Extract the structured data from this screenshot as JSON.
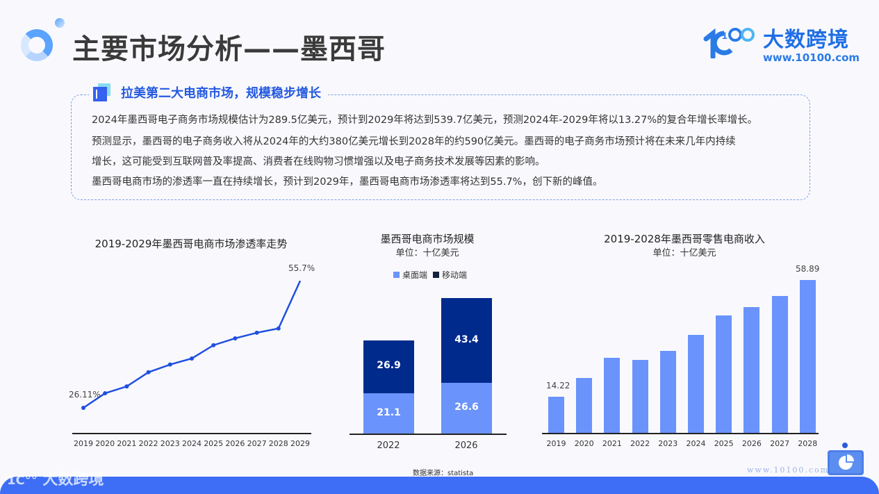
{
  "header": {
    "title": "主要市场分析——墨西哥",
    "logo_name": "大数跨境",
    "logo_url": "www.10100.com"
  },
  "summary": {
    "heading": "拉美第二大电商市场，规模稳步增长",
    "lines": [
      "2024年墨西哥电子商务市场规模估计为289.5亿美元，预计到2029年将达到539.7亿美元，预测2024年-2029年将以13.27%的复合年增长率增长。",
      "预测显示，墨西哥的电子商务收入将从2024年的大约380亿美元增长到2028年的约590亿美元。墨西哥的电子商务市场预计将在未来几年内持续",
      "增长，这可能受到互联网普及率提高、消费者在线购物习惯增强以及电子商务技术发展等因素的影响。",
      "墨西哥电商市场的渗透率一直在持续增长，预计到2029年，墨西哥电商市场渗透率将达到55.7%，创下新的峰值。"
    ]
  },
  "source": "数据来源：statista",
  "footer": {
    "logo": "大数跨境",
    "url": "www.10100.com"
  },
  "colors": {
    "accent": "#2459e0",
    "line": "#1f4fe0",
    "bar_light": "#6a93fb",
    "bar_dark": "#002a8c",
    "footer": "#3d6ef5"
  },
  "chart_data": [
    {
      "type": "line",
      "title": "2019-2029年墨西哥电商市场渗透率走势",
      "categories": [
        "2019",
        "2020",
        "2021",
        "2022",
        "2023",
        "2024",
        "2025",
        "2026",
        "2027",
        "2028",
        "2029"
      ],
      "values": [
        26.11,
        29.5,
        31.1,
        34.4,
        36.2,
        37.6,
        40.7,
        42.3,
        43.6,
        44.6,
        55.7
      ],
      "labels": {
        "first": "26.11%",
        "last": "55.7%"
      },
      "xlabel": "",
      "ylabel": "",
      "grid": false
    },
    {
      "type": "bar",
      "stacked": true,
      "title": "墨西哥电商市场规模",
      "subtitle": "单位：十亿美元",
      "categories": [
        "2022",
        "2026"
      ],
      "series": [
        {
          "name": "桌面端",
          "values": [
            21.1,
            26.6
          ]
        },
        {
          "name": "移动端",
          "values": [
            26.9,
            43.4
          ]
        }
      ],
      "legend_position": "top"
    },
    {
      "type": "bar",
      "title": "2019-2028年墨西哥零售电商收入",
      "subtitle": "单位：十亿美元",
      "categories": [
        "2019",
        "2020",
        "2021",
        "2022",
        "2023",
        "2024",
        "2025",
        "2026",
        "2027",
        "2028"
      ],
      "values": [
        14.22,
        21.3,
        29.1,
        28.3,
        31.7,
        37.9,
        45.3,
        48.5,
        52.8,
        58.89
      ],
      "labels": {
        "first": "14.22",
        "last": "58.89"
      },
      "grid": false
    }
  ]
}
